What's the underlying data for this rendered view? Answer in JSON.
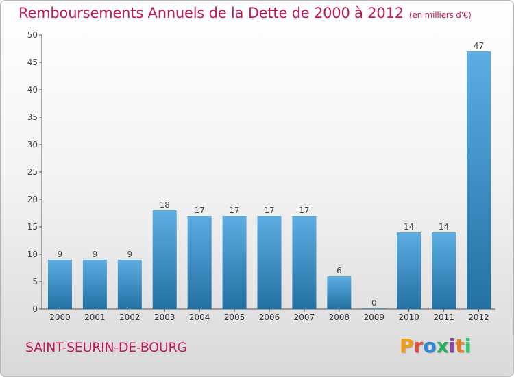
{
  "header": {
    "title": "Remboursements Annuels de la Dette de 2000 à 2012",
    "unit_note": "(en milliers d'€)"
  },
  "footer": {
    "commune": "SAINT-SEURIN-DE-BOURG",
    "brand_letters": [
      "P",
      "r",
      "o",
      "x",
      "i",
      "t",
      "i"
    ],
    "brand_colors": [
      "#f39c12",
      "#e74c3c",
      "#2e86de",
      "#27ae60",
      "#8e44ad",
      "#e67e22",
      "#2ecc71"
    ]
  },
  "colors": {
    "bar_top": "#5dade2",
    "bar_bottom": "#2471a3",
    "title": "#c2185b"
  },
  "chart_data": {
    "type": "bar",
    "categories": [
      "2000",
      "2001",
      "2002",
      "2003",
      "2004",
      "2005",
      "2006",
      "2007",
      "2008",
      "2009",
      "2010",
      "2011",
      "2012"
    ],
    "values": [
      9,
      9,
      9,
      18,
      17,
      17,
      17,
      17,
      6,
      0,
      14,
      14,
      47
    ],
    "data_labels": [
      "9",
      "9",
      "9",
      "18",
      "17",
      "17",
      "17",
      "17",
      "6",
      "0",
      "14",
      "14",
      "47"
    ],
    "title": "Remboursements Annuels de la Dette de 2000 à 2012",
    "xlabel": "",
    "ylabel": "",
    "ylim": [
      0,
      50
    ],
    "yticks": [
      0,
      5,
      10,
      15,
      20,
      25,
      30,
      35,
      40,
      45,
      50
    ],
    "ytick_labels": [
      "0",
      "5",
      "10",
      "15",
      "20",
      "25",
      "30",
      "35",
      "40",
      "45",
      "50"
    ],
    "grid": false,
    "legend": "none"
  }
}
